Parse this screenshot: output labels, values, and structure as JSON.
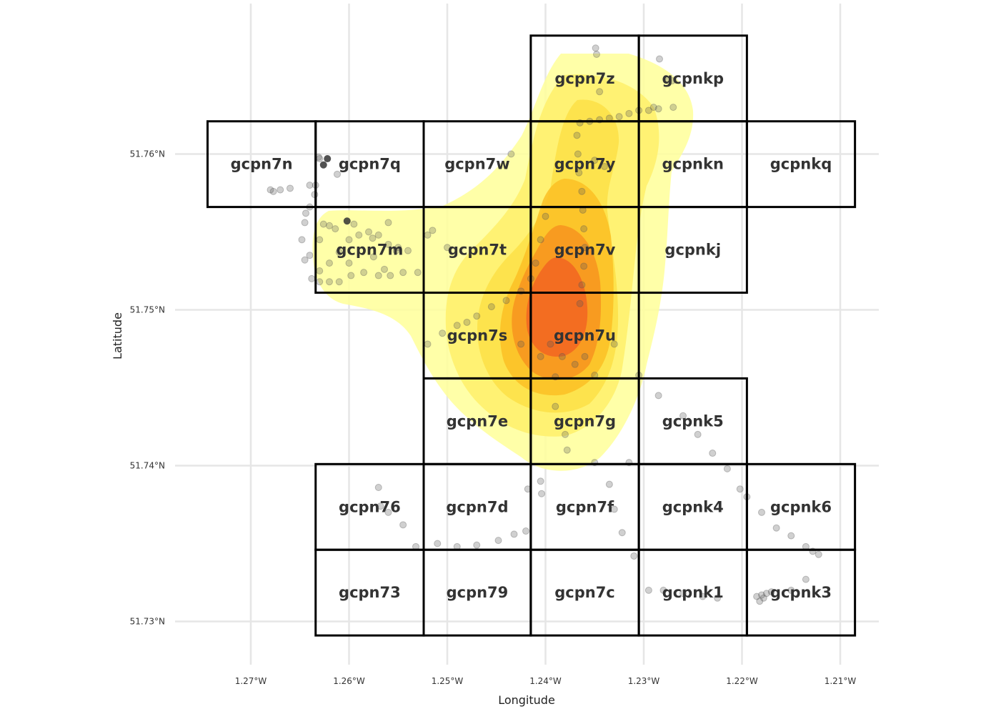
{
  "axes": {
    "xlabel": "Longitude",
    "ylabel": "Latitude",
    "x_ticks": [
      {
        "value": -1.27,
        "label": "1.27°W"
      },
      {
        "value": -1.26,
        "label": "1.26°W"
      },
      {
        "value": -1.25,
        "label": "1.25°W"
      },
      {
        "value": -1.24,
        "label": "1.24°W"
      },
      {
        "value": -1.23,
        "label": "1.23°W"
      },
      {
        "value": -1.22,
        "label": "1.22°W"
      },
      {
        "value": -1.21,
        "label": "1.21°W"
      }
    ],
    "y_ticks": [
      {
        "value": 51.76,
        "label": "51.76°N"
      },
      {
        "value": 51.75,
        "label": "51.75°N"
      },
      {
        "value": 51.74,
        "label": "51.74°N"
      },
      {
        "value": 51.73,
        "label": "51.73°N"
      }
    ]
  },
  "geohash_cells": [
    {
      "label": "gcpn7z",
      "lon": [
        -1.2415,
        -1.2305
      ],
      "lat": [
        51.7621,
        51.7676
      ]
    },
    {
      "label": "gcpnkp",
      "lon": [
        -1.2305,
        -1.2195
      ],
      "lat": [
        51.7621,
        51.7676
      ]
    },
    {
      "label": "gcpn7n",
      "lon": [
        -1.2744,
        -1.2634
      ],
      "lat": [
        51.7566,
        51.7621
      ]
    },
    {
      "label": "gcpn7q",
      "lon": [
        -1.2634,
        -1.2524
      ],
      "lat": [
        51.7566,
        51.7621
      ]
    },
    {
      "label": "gcpn7w",
      "lon": [
        -1.2524,
        -1.2415
      ],
      "lat": [
        51.7566,
        51.7621
      ]
    },
    {
      "label": "gcpn7y",
      "lon": [
        -1.2415,
        -1.2305
      ],
      "lat": [
        51.7566,
        51.7621
      ]
    },
    {
      "label": "gcpnkn",
      "lon": [
        -1.2305,
        -1.2195
      ],
      "lat": [
        51.7566,
        51.7621
      ]
    },
    {
      "label": "gcpnkq",
      "lon": [
        -1.2195,
        -1.2085
      ],
      "lat": [
        51.7566,
        51.7621
      ]
    },
    {
      "label": "gcpn7m",
      "lon": [
        -1.2634,
        -1.2524
      ],
      "lat": [
        51.7511,
        51.7566
      ]
    },
    {
      "label": "gcpn7t",
      "lon": [
        -1.2524,
        -1.2415
      ],
      "lat": [
        51.7511,
        51.7566
      ]
    },
    {
      "label": "gcpn7v",
      "lon": [
        -1.2415,
        -1.2305
      ],
      "lat": [
        51.7511,
        51.7566
      ]
    },
    {
      "label": "gcpnkj",
      "lon": [
        -1.2305,
        -1.2195
      ],
      "lat": [
        51.7511,
        51.7566
      ]
    },
    {
      "label": "gcpn7s",
      "lon": [
        -1.2524,
        -1.2415
      ],
      "lat": [
        51.7456,
        51.7511
      ]
    },
    {
      "label": "gcpn7u",
      "lon": [
        -1.2415,
        -1.2305
      ],
      "lat": [
        51.7456,
        51.7511
      ]
    },
    {
      "label": "gcpn7e",
      "lon": [
        -1.2524,
        -1.2415
      ],
      "lat": [
        51.7401,
        51.7456
      ]
    },
    {
      "label": "gcpn7g",
      "lon": [
        -1.2415,
        -1.2305
      ],
      "lat": [
        51.7401,
        51.7456
      ]
    },
    {
      "label": "gcpnk5",
      "lon": [
        -1.2305,
        -1.2195
      ],
      "lat": [
        51.7401,
        51.7456
      ]
    },
    {
      "label": "gcpn76",
      "lon": [
        -1.2634,
        -1.2524
      ],
      "lat": [
        51.7346,
        51.7401
      ]
    },
    {
      "label": "gcpn7d",
      "lon": [
        -1.2524,
        -1.2415
      ],
      "lat": [
        51.7346,
        51.7401
      ]
    },
    {
      "label": "gcpn7f",
      "lon": [
        -1.2415,
        -1.2305
      ],
      "lat": [
        51.7346,
        51.7401
      ]
    },
    {
      "label": "gcpnk4",
      "lon": [
        -1.2305,
        -1.2195
      ],
      "lat": [
        51.7346,
        51.7401
      ]
    },
    {
      "label": "gcpnk6",
      "lon": [
        -1.2195,
        -1.2085
      ],
      "lat": [
        51.7346,
        51.7401
      ]
    },
    {
      "label": "gcpn73",
      "lon": [
        -1.2634,
        -1.2524
      ],
      "lat": [
        51.7291,
        51.7346
      ]
    },
    {
      "label": "gcpn79",
      "lon": [
        -1.2524,
        -1.2415
      ],
      "lat": [
        51.7291,
        51.7346
      ]
    },
    {
      "label": "gcpn7c",
      "lon": [
        -1.2415,
        -1.2305
      ],
      "lat": [
        51.7291,
        51.7346
      ]
    },
    {
      "label": "gcpnk1",
      "lon": [
        -1.2305,
        -1.2195
      ],
      "lat": [
        51.7291,
        51.7346
      ]
    },
    {
      "label": "gcpnk3",
      "lon": [
        -1.2195,
        -1.2085
      ],
      "lat": [
        51.7291,
        51.7346
      ]
    }
  ],
  "density": {
    "levels": [
      "#ffff99",
      "#fff06a",
      "#fde047",
      "#fbbf24",
      "#f7931e",
      "#f26522"
    ],
    "peak": {
      "lon": -1.2398,
      "lat": 51.7507
    }
  },
  "points": {
    "color": "#555555",
    "coords": [
      [
        -1.2349,
        51.7668
      ],
      [
        -1.2348,
        51.7664
      ],
      [
        -1.2284,
        51.7661
      ],
      [
        -1.2275,
        51.7647
      ],
      [
        -1.227,
        51.763
      ],
      [
        -1.2285,
        51.7629
      ],
      [
        -1.2295,
        51.7628
      ],
      [
        -1.2305,
        51.7628
      ],
      [
        -1.2315,
        51.7626
      ],
      [
        -1.2325,
        51.7624
      ],
      [
        -1.2335,
        51.7623
      ],
      [
        -1.2345,
        51.7622
      ],
      [
        -1.2355,
        51.7621
      ],
      [
        -1.2365,
        51.762
      ],
      [
        -1.2368,
        51.7612
      ],
      [
        -1.2367,
        51.76
      ],
      [
        -1.2366,
        51.7588
      ],
      [
        -1.2363,
        51.7576
      ],
      [
        -1.2362,
        51.7564
      ],
      [
        -1.2361,
        51.7552
      ],
      [
        -1.236,
        51.754
      ],
      [
        -1.2361,
        51.7528
      ],
      [
        -1.2363,
        51.7516
      ],
      [
        -1.2365,
        51.7504
      ],
      [
        -1.235,
        51.7596
      ],
      [
        -1.234,
        51.7592
      ],
      [
        -1.2345,
        51.764
      ],
      [
        -1.2271,
        51.7647
      ],
      [
        -1.229,
        51.763
      ],
      [
        -1.24,
        51.756
      ],
      [
        -1.2405,
        51.7545
      ],
      [
        -1.241,
        51.753
      ],
      [
        -1.2415,
        51.752
      ],
      [
        -1.2425,
        51.7512
      ],
      [
        -1.244,
        51.7506
      ],
      [
        -1.2455,
        51.7502
      ],
      [
        -1.247,
        51.7496
      ],
      [
        -1.248,
        51.7492
      ],
      [
        -1.249,
        51.749
      ],
      [
        -1.2505,
        51.7485
      ],
      [
        -1.252,
        51.7478
      ],
      [
        -1.2435,
        51.76
      ],
      [
        -1.25,
        51.754
      ],
      [
        -1.253,
        51.7524
      ],
      [
        -1.2545,
        51.7524
      ],
      [
        -1.2558,
        51.7522
      ],
      [
        -1.257,
        51.7522
      ],
      [
        -1.2585,
        51.7524
      ],
      [
        -1.2598,
        51.7522
      ],
      [
        -1.261,
        51.7518
      ],
      [
        -1.262,
        51.7518
      ],
      [
        -1.263,
        51.7518
      ],
      [
        -1.2638,
        51.752
      ],
      [
        -1.2645,
        51.7532
      ],
      [
        -1.2648,
        51.7545
      ],
      [
        -1.2645,
        51.7556
      ],
      [
        -1.264,
        51.7566
      ],
      [
        -1.2635,
        51.7574
      ],
      [
        -1.2634,
        51.758
      ],
      [
        -1.26,
        51.7545
      ],
      [
        -1.259,
        51.7548
      ],
      [
        -1.258,
        51.755
      ],
      [
        -1.257,
        51.7548
      ],
      [
        -1.256,
        51.7542
      ],
      [
        -1.255,
        51.754
      ],
      [
        -1.254,
        51.7538
      ],
      [
        -1.261,
        51.7537
      ],
      [
        -1.262,
        51.753
      ],
      [
        -1.263,
        51.7525
      ],
      [
        -1.2614,
        51.7552
      ],
      [
        -1.2626,
        51.7555
      ],
      [
        -1.2595,
        51.7555
      ],
      [
        -1.2576,
        51.7546
      ],
      [
        -1.2564,
        51.7526
      ],
      [
        -1.2552,
        51.7538
      ],
      [
        -1.252,
        51.7548
      ],
      [
        -1.2515,
        51.7551
      ],
      [
        -1.256,
        51.7556
      ],
      [
        -1.2575,
        51.7534
      ],
      [
        -1.26,
        51.753
      ],
      [
        -1.264,
        51.7535
      ],
      [
        -1.263,
        51.7545
      ],
      [
        -1.2644,
        51.7562
      ],
      [
        -1.263,
        51.7597
      ],
      [
        -1.2631,
        51.7598
      ],
      [
        -1.264,
        51.758
      ],
      [
        -1.266,
        51.7578
      ],
      [
        -1.267,
        51.7577
      ],
      [
        -1.268,
        51.7577
      ],
      [
        -1.2677,
        51.7576
      ],
      [
        -1.2612,
        51.7587
      ],
      [
        -1.262,
        51.7554
      ],
      [
        -1.2425,
        51.7478
      ],
      [
        -1.2395,
        51.7478
      ],
      [
        -1.2383,
        51.747
      ],
      [
        -1.237,
        51.7465
      ],
      [
        -1.236,
        51.747
      ],
      [
        -1.233,
        51.7478
      ],
      [
        -1.2305,
        51.7458
      ],
      [
        -1.2285,
        51.7445
      ],
      [
        -1.226,
        51.7432
      ],
      [
        -1.2245,
        51.742
      ],
      [
        -1.223,
        51.7408
      ],
      [
        -1.2215,
        51.7398
      ],
      [
        -1.2202,
        51.7385
      ],
      [
        -1.2195,
        51.738
      ],
      [
        -1.218,
        51.737
      ],
      [
        -1.2165,
        51.736
      ],
      [
        -1.215,
        51.7355
      ],
      [
        -1.2135,
        51.7348
      ],
      [
        -1.2128,
        51.7345
      ],
      [
        -1.2122,
        51.7343
      ],
      [
        -1.2135,
        51.7327
      ],
      [
        -1.215,
        51.732
      ],
      [
        -1.217,
        51.7319
      ],
      [
        -1.2175,
        51.7318
      ],
      [
        -1.218,
        51.7317
      ],
      [
        -1.2185,
        51.7316
      ],
      [
        -1.2178,
        51.7315
      ],
      [
        -1.2182,
        51.7313
      ],
      [
        -1.2335,
        51.7388
      ],
      [
        -1.233,
        51.7372
      ],
      [
        -1.2322,
        51.7357
      ],
      [
        -1.231,
        51.7342
      ],
      [
        -1.228,
        51.732
      ],
      [
        -1.226,
        51.7318
      ],
      [
        -1.224,
        51.7316
      ],
      [
        -1.2225,
        51.7315
      ],
      [
        -1.2295,
        51.732
      ],
      [
        -1.2315,
        51.7402
      ],
      [
        -1.2418,
        51.7385
      ],
      [
        -1.2405,
        51.739
      ],
      [
        -1.2404,
        51.7382
      ],
      [
        -1.242,
        51.7358
      ],
      [
        -1.2432,
        51.7356
      ],
      [
        -1.2448,
        51.7352
      ],
      [
        -1.247,
        51.7349
      ],
      [
        -1.249,
        51.7348
      ],
      [
        -1.251,
        51.735
      ],
      [
        -1.2532,
        51.7348
      ],
      [
        -1.2545,
        51.7362
      ],
      [
        -1.256,
        51.737
      ],
      [
        -1.2568,
        51.7374
      ],
      [
        -1.257,
        51.7386
      ],
      [
        -1.238,
        51.742
      ],
      [
        -1.2378,
        51.741
      ],
      [
        -1.239,
        51.7438
      ],
      [
        -1.235,
        51.7458
      ],
      [
        -1.235,
        51.7402
      ],
      [
        -1.239,
        51.7457
      ],
      [
        -1.2405,
        51.747
      ]
    ]
  }
}
